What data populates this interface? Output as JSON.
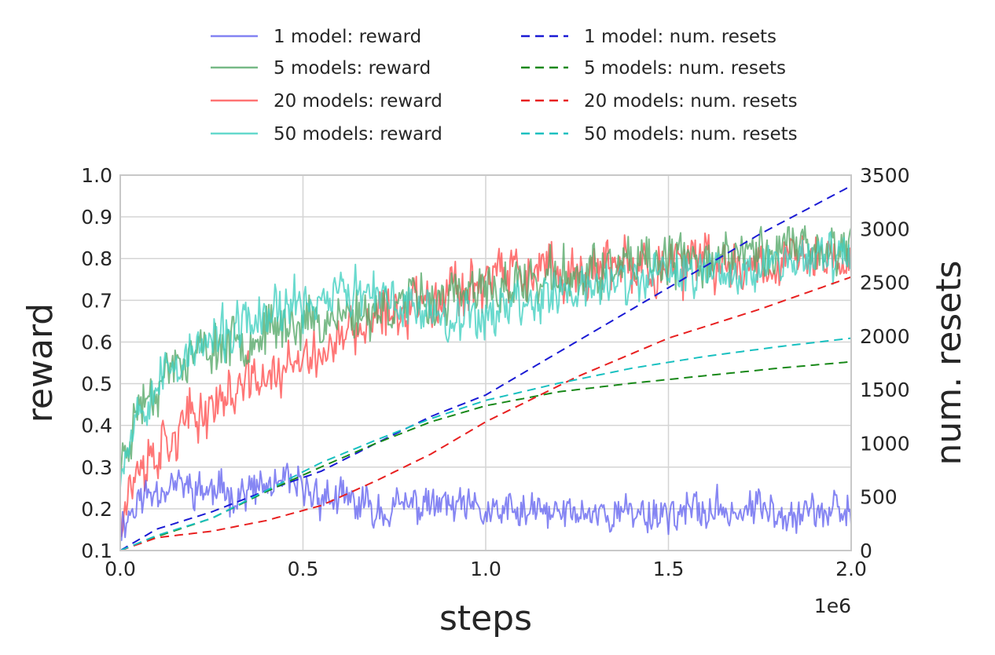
{
  "chart_data": {
    "type": "line",
    "xlabel": "steps",
    "ylabel": "reward",
    "y2label": "num. resets",
    "x_offset_label": "1e6",
    "xlim": [
      0,
      2000000
    ],
    "ylim": [
      0.1,
      1.0
    ],
    "y2lim": [
      0,
      3500
    ],
    "grid": true,
    "legend_position": "top, two columns",
    "x_ticks": [
      0,
      500000,
      1000000,
      1500000,
      2000000
    ],
    "x_tick_labels": [
      "0.0",
      "0.5",
      "1.0",
      "1.5",
      "2.0"
    ],
    "y_ticks": [
      0.1,
      0.2,
      0.3,
      0.4,
      0.5,
      0.6,
      0.7,
      0.8,
      0.9,
      1.0
    ],
    "y_tick_labels": [
      "0.1",
      "0.2",
      "0.3",
      "0.4",
      "0.5",
      "0.6",
      "0.7",
      "0.8",
      "0.9",
      "1.0"
    ],
    "y2_ticks": [
      0,
      500,
      1000,
      1500,
      2000,
      2500,
      3000,
      3500
    ],
    "y2_tick_labels": [
      "0",
      "500",
      "1000",
      "1500",
      "2000",
      "2500",
      "3000",
      "3500"
    ],
    "reward_series": [
      {
        "name": "1 model: reward",
        "color": "#6464f0",
        "noise": 0.045,
        "seed": 11,
        "x": [
          0,
          50000,
          100000,
          150000,
          250000,
          350000,
          450000,
          550000,
          700000,
          850000,
          1000000,
          1250000,
          1500000,
          1750000,
          2000000
        ],
        "y": [
          0.16,
          0.22,
          0.25,
          0.26,
          0.24,
          0.24,
          0.26,
          0.23,
          0.2,
          0.21,
          0.19,
          0.19,
          0.19,
          0.2,
          0.19
        ]
      },
      {
        "name": "5 models: reward",
        "color": "#55a868",
        "noise": 0.06,
        "seed": 23,
        "x": [
          0,
          50000,
          150000,
          300000,
          450000,
          600000,
          700000,
          800000,
          950000,
          1100000,
          1300000,
          1500000,
          1700000,
          1850000,
          2000000
        ],
        "y": [
          0.3,
          0.45,
          0.55,
          0.6,
          0.64,
          0.66,
          0.68,
          0.7,
          0.71,
          0.74,
          0.77,
          0.79,
          0.81,
          0.83,
          0.82
        ]
      },
      {
        "name": "20 models: reward",
        "color": "#ff5050",
        "noise": 0.065,
        "seed": 37,
        "x": [
          0,
          50000,
          150000,
          250000,
          350000,
          500000,
          650000,
          800000,
          950000,
          1100000,
          1300000,
          1500000,
          1700000,
          1850000,
          2000000
        ],
        "y": [
          0.2,
          0.3,
          0.38,
          0.45,
          0.5,
          0.55,
          0.62,
          0.7,
          0.74,
          0.76,
          0.77,
          0.78,
          0.79,
          0.8,
          0.8
        ]
      },
      {
        "name": "50 models: reward",
        "color": "#40d0c0",
        "noise": 0.06,
        "seed": 53,
        "x": [
          0,
          50000,
          150000,
          300000,
          450000,
          600000,
          700000,
          850000,
          950000,
          1100000,
          1300000,
          1500000,
          1700000,
          1850000,
          2000000
        ],
        "y": [
          0.3,
          0.45,
          0.55,
          0.62,
          0.68,
          0.72,
          0.7,
          0.68,
          0.66,
          0.7,
          0.73,
          0.76,
          0.78,
          0.8,
          0.8
        ]
      }
    ],
    "resets_series": [
      {
        "name": "1 model: num. resets",
        "color": "#1a1ad4",
        "x": [
          0,
          100000,
          250000,
          400000,
          550000,
          700000,
          850000,
          1000000,
          1250000,
          1500000,
          1750000,
          2000000
        ],
        "y": [
          0,
          200,
          360,
          560,
          740,
          1000,
          1250,
          1450,
          1950,
          2450,
          2950,
          3400
        ]
      },
      {
        "name": "5 models: num. resets",
        "color": "#188818",
        "x": [
          0,
          100000,
          250000,
          400000,
          550000,
          700000,
          850000,
          1000000,
          1200000,
          1400000,
          1600000,
          1800000,
          2000000
        ],
        "y": [
          0,
          130,
          300,
          550,
          780,
          1000,
          1200,
          1350,
          1480,
          1560,
          1630,
          1700,
          1760
        ]
      },
      {
        "name": "20 models: num. resets",
        "color": "#e82020",
        "x": [
          0,
          100000,
          250000,
          400000,
          550000,
          700000,
          850000,
          1000000,
          1250000,
          1500000,
          1750000,
          2000000
        ],
        "y": [
          0,
          120,
          180,
          280,
          420,
          650,
          900,
          1200,
          1620,
          1980,
          2250,
          2550
        ]
      },
      {
        "name": "50 models: num. resets",
        "color": "#18c0c0",
        "x": [
          0,
          100000,
          250000,
          400000,
          550000,
          700000,
          850000,
          1000000,
          1200000,
          1400000,
          1600000,
          1800000,
          2000000
        ],
        "y": [
          0,
          140,
          300,
          560,
          820,
          1030,
          1230,
          1400,
          1560,
          1700,
          1810,
          1900,
          1980
        ]
      }
    ]
  }
}
